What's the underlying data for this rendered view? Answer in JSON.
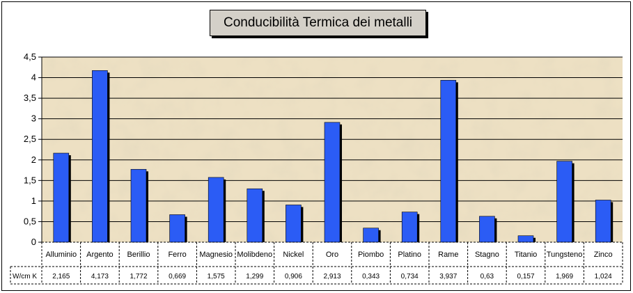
{
  "chart_data": {
    "type": "bar",
    "title": "Conducibilità Termica dei metalli",
    "categories": [
      "Alluminio",
      "Argento",
      "Berillio",
      "Ferro",
      "Magnesio",
      "Molibdeno",
      "Nickel",
      "Oro",
      "Piombo",
      "Platino",
      "Rame",
      "Stagno",
      "Titanio",
      "Tungsteno",
      "Zinco"
    ],
    "series": [
      {
        "name": "W/cm K",
        "value_labels": [
          "2,165",
          "4,173",
          "1,772",
          "0,669",
          "1,575",
          "1,299",
          "0,906",
          "2,913",
          "0,343",
          "0,734",
          "3,937",
          "0,63",
          "0,157",
          "1,969",
          "1,024"
        ],
        "values": [
          2.165,
          4.173,
          1.772,
          0.669,
          1.575,
          1.299,
          0.906,
          2.913,
          0.343,
          0.734,
          3.937,
          0.63,
          0.157,
          1.969,
          1.024
        ]
      }
    ],
    "ylim": [
      0,
      4.5
    ],
    "yticks": [
      "0",
      "0,5",
      "1",
      "1,5",
      "2",
      "2,5",
      "3",
      "3,5",
      "4",
      "4,5"
    ],
    "grid": true,
    "data_table": true,
    "colors": {
      "bar": "#2b5cf5",
      "bar_shadow": "#000000",
      "plot_bg": "#ede0c3",
      "grid": "#000000"
    }
  }
}
